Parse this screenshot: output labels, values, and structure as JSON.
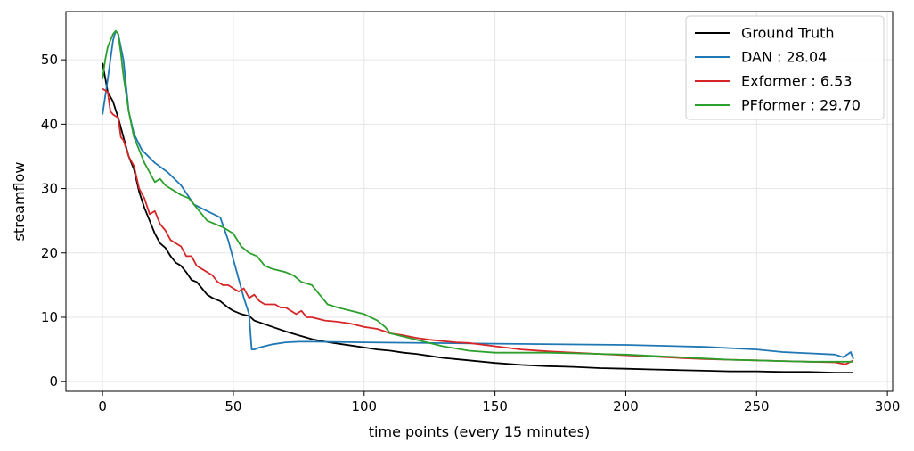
{
  "chart_data": {
    "type": "line",
    "title": "",
    "xlabel": "time points (every 15 minutes)",
    "ylabel": "streamflow",
    "xlim": [
      -14,
      302
    ],
    "ylim": [
      -1.5,
      57.5
    ],
    "xticks": [
      0,
      50,
      100,
      150,
      200,
      250,
      300
    ],
    "yticks": [
      0,
      10,
      20,
      30,
      40,
      50
    ],
    "grid": true,
    "legend_position": "top-right",
    "series": [
      {
        "name": "Ground Truth",
        "color": "#000000",
        "x": [
          0,
          2,
          4,
          6,
          8,
          10,
          12,
          14,
          16,
          18,
          20,
          22,
          24,
          26,
          28,
          30,
          32,
          34,
          36,
          38,
          40,
          42,
          45,
          48,
          50,
          53,
          56,
          58,
          60,
          65,
          70,
          75,
          80,
          85,
          90,
          95,
          100,
          105,
          110,
          115,
          120,
          125,
          130,
          140,
          150,
          160,
          170,
          180,
          190,
          200,
          210,
          220,
          230,
          240,
          250,
          260,
          270,
          280,
          287
        ],
        "values": [
          49.5,
          45.0,
          43.5,
          41.0,
          38.0,
          35.0,
          33.0,
          29.5,
          27.0,
          25.0,
          23.0,
          21.5,
          20.8,
          19.5,
          18.5,
          18.0,
          17.0,
          15.8,
          15.5,
          14.5,
          13.5,
          13.0,
          12.5,
          11.5,
          11.0,
          10.5,
          10.2,
          9.5,
          9.2,
          8.5,
          7.8,
          7.2,
          6.6,
          6.2,
          5.9,
          5.6,
          5.3,
          5.0,
          4.8,
          4.5,
          4.3,
          4.0,
          3.7,
          3.3,
          2.9,
          2.6,
          2.4,
          2.3,
          2.1,
          2.0,
          1.9,
          1.8,
          1.7,
          1.6,
          1.6,
          1.5,
          1.5,
          1.4,
          1.4
        ]
      },
      {
        "name": "DAN : 28.04",
        "color": "#1f77b4",
        "x": [
          0,
          2,
          4,
          5,
          6,
          8,
          10,
          12,
          15,
          20,
          25,
          30,
          35,
          40,
          45,
          48,
          50,
          52,
          54,
          56,
          57,
          58,
          60,
          65,
          70,
          75,
          80,
          100,
          150,
          200,
          230,
          250,
          260,
          270,
          280,
          283,
          285,
          286,
          287
        ],
        "values": [
          41.5,
          47.0,
          53.0,
          54.5,
          54.0,
          50.0,
          42.0,
          38.5,
          36.0,
          34.0,
          32.5,
          30.5,
          27.5,
          26.5,
          25.5,
          22.0,
          19.0,
          16.0,
          13.0,
          10.5,
          5.0,
          5.0,
          5.3,
          5.8,
          6.1,
          6.2,
          6.2,
          6.1,
          5.9,
          5.7,
          5.4,
          5.0,
          4.6,
          4.4,
          4.2,
          3.8,
          4.3,
          4.6,
          3.5
        ]
      },
      {
        "name": "Exformer : 6.53",
        "color": "#d62728",
        "x": [
          0,
          2,
          3,
          4,
          6,
          7,
          8,
          10,
          12,
          14,
          16,
          18,
          20,
          22,
          24,
          26,
          28,
          30,
          32,
          34,
          36,
          38,
          40,
          42,
          44,
          46,
          48,
          50,
          52,
          54,
          56,
          58,
          60,
          62,
          64,
          66,
          68,
          70,
          72,
          74,
          76,
          78,
          80,
          85,
          90,
          95,
          100,
          105,
          110,
          115,
          120,
          125,
          130,
          135,
          140,
          150,
          160,
          170,
          180,
          190,
          200,
          210,
          220,
          230,
          240,
          250,
          260,
          270,
          280,
          284,
          287
        ],
        "values": [
          45.5,
          45.0,
          42.0,
          41.5,
          41.0,
          38.0,
          37.5,
          35.0,
          33.5,
          30.0,
          28.5,
          26.0,
          26.5,
          24.5,
          23.5,
          22.0,
          21.5,
          21.0,
          19.5,
          19.5,
          18.0,
          17.5,
          17.0,
          16.5,
          15.5,
          15.0,
          15.0,
          14.5,
          14.0,
          14.5,
          13.0,
          13.5,
          12.5,
          12.0,
          12.0,
          12.0,
          11.5,
          11.5,
          11.0,
          10.5,
          11.0,
          10.0,
          10.0,
          9.5,
          9.3,
          9.0,
          8.5,
          8.2,
          7.5,
          7.2,
          6.8,
          6.5,
          6.3,
          6.1,
          6.0,
          5.5,
          5.0,
          4.7,
          4.5,
          4.3,
          4.1,
          3.9,
          3.7,
          3.5,
          3.4,
          3.3,
          3.2,
          3.1,
          3.0,
          2.7,
          3.3
        ]
      },
      {
        "name": "PFformer : 29.70",
        "color": "#2ca02c",
        "x": [
          0,
          1,
          2,
          3,
          4,
          5,
          6,
          7,
          8,
          10,
          12,
          14,
          16,
          18,
          20,
          22,
          24,
          26,
          28,
          30,
          33,
          36,
          40,
          43,
          46,
          50,
          53,
          56,
          59,
          62,
          65,
          70,
          73,
          76,
          80,
          83,
          86,
          90,
          95,
          100,
          105,
          108,
          110,
          115,
          120,
          130,
          140,
          150,
          160,
          170,
          180,
          190,
          200,
          210,
          220,
          230,
          240,
          250,
          260,
          270,
          280,
          287
        ],
        "values": [
          47.0,
          50.0,
          52.0,
          53.0,
          54.0,
          54.5,
          54.0,
          51.0,
          47.5,
          42.0,
          38.0,
          36.0,
          34.0,
          32.5,
          31.0,
          31.5,
          30.5,
          30.0,
          29.5,
          29.0,
          28.5,
          27.0,
          25.0,
          24.5,
          24.0,
          23.0,
          21.0,
          20.0,
          19.5,
          18.0,
          17.5,
          17.0,
          16.5,
          15.5,
          15.0,
          13.5,
          12.0,
          11.5,
          11.0,
          10.5,
          9.5,
          8.5,
          7.5,
          7.0,
          6.5,
          5.5,
          4.8,
          4.5,
          4.5,
          4.5,
          4.4,
          4.3,
          4.2,
          4.0,
          3.8,
          3.6,
          3.4,
          3.3,
          3.2,
          3.1,
          3.1,
          3.1
        ]
      }
    ]
  }
}
